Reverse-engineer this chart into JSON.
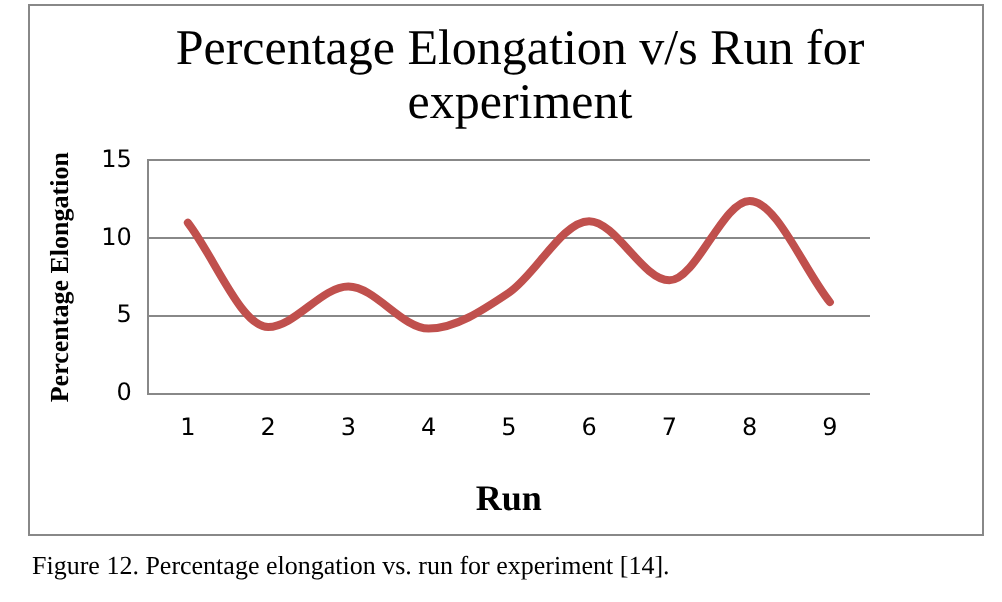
{
  "chart_data": {
    "type": "line",
    "title": "Percentage Elongation  v/s Run for experiment",
    "xlabel": "Run",
    "ylabel": "Percentage Elongation",
    "categories": [
      "1",
      "2",
      "3",
      "4",
      "5",
      "6",
      "7",
      "8",
      "9"
    ],
    "series": [
      {
        "color": "#c0504d",
        "values": [
          11.0,
          4.3,
          6.9,
          4.2,
          6.5,
          11.1,
          7.3,
          12.4,
          5.9
        ]
      }
    ],
    "ylim": [
      0,
      15
    ],
    "yticks": [
      0,
      5,
      10,
      15
    ],
    "grid": "y",
    "legend": false,
    "marker": "none",
    "line_style": "solid",
    "annotations": [
      "Figure 12. Percentage elongation vs. run for experiment [14]."
    ]
  }
}
